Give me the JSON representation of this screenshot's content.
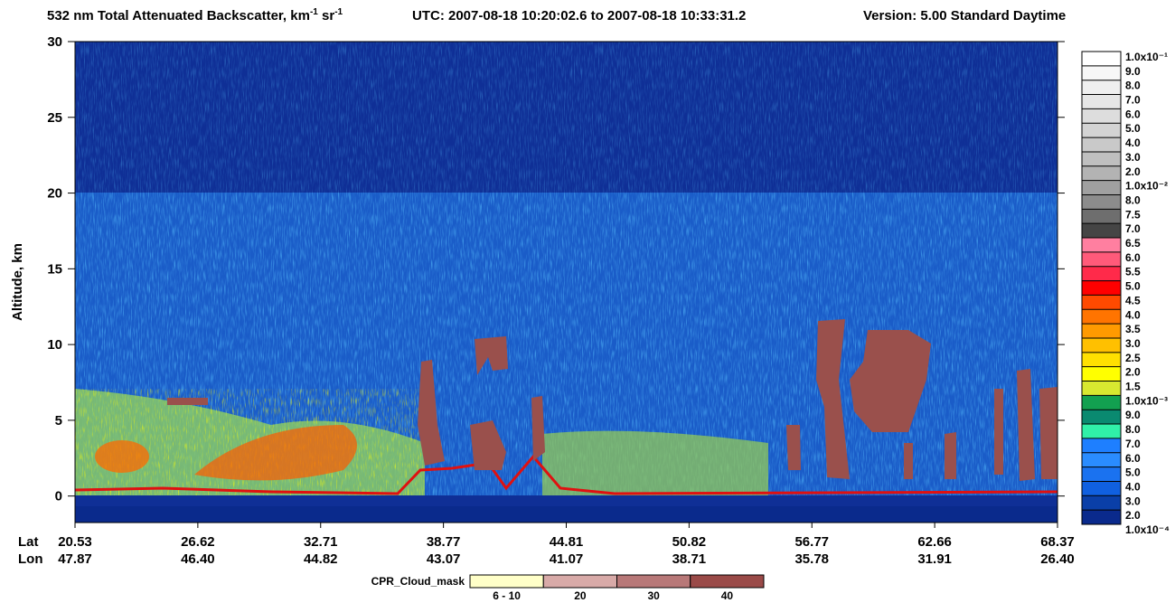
{
  "chart_data": {
    "type": "heatmap",
    "title_parts": [
      "532 nm Total Attenuated Backscatter, km",
      "-1",
      " sr",
      "-1"
    ],
    "utc": "UTC:  2007-08-18 10:20:02.6  to  2007-08-18 10:33:31.2",
    "version": "Version: 5.00  Standard  Daytime",
    "ylabel": "Altitude, km",
    "ylim": [
      -1.75,
      30
    ],
    "yticks": [
      0,
      5,
      10,
      15,
      20,
      25,
      30
    ],
    "x_rows": [
      {
        "name": "Lat",
        "labels": [
          "20.53",
          "26.62",
          "32.71",
          "38.77",
          "44.81",
          "50.82",
          "56.77",
          "62.66",
          "68.37"
        ]
      },
      {
        "name": "Lon",
        "labels": [
          "47.87",
          "46.40",
          "44.82",
          "43.07",
          "41.07",
          "38.71",
          "35.78",
          "31.91",
          "26.40"
        ]
      }
    ],
    "colorbar_labels": [
      "1.0x10⁻¹",
      "9.0",
      "8.0",
      "7.0",
      "6.0",
      "5.0",
      "4.0",
      "3.0",
      "2.0",
      "1.0x10⁻²",
      "8.0",
      "7.5",
      "7.0",
      "6.5",
      "6.0",
      "5.5",
      "5.0",
      "4.5",
      "4.0",
      "3.5",
      "3.0",
      "2.5",
      "2.0",
      "1.5",
      "1.0x10⁻³",
      "9.0",
      "8.0",
      "7.0",
      "6.0",
      "5.0",
      "4.0",
      "3.0",
      "2.0",
      "1.0x10⁻⁴"
    ],
    "colorbar_colors": [
      "#ffffff",
      "#f7f7f7",
      "#efefef",
      "#e6e6e6",
      "#dddddd",
      "#d3d3d3",
      "#c9c9c9",
      "#bfbfbf",
      "#b3b3b3",
      "#a0a0a0",
      "#8c8c8c",
      "#6e6e6e",
      "#454545",
      "#ff7fa0",
      "#ff5a7a",
      "#ff2a4a",
      "#ff0000",
      "#ff4a00",
      "#ff7400",
      "#ff9a00",
      "#ffc000",
      "#ffe000",
      "#ffff00",
      "#d8e830",
      "#12a050",
      "#0a8a70",
      "#30f0a8",
      "#1e7fff",
      "#2a8cff",
      "#1a72f0",
      "#1060e0",
      "#0a3fa8",
      "#0a2a8c"
    ],
    "cloud_mask": {
      "title": "CPR_Cloud_mask",
      "labels": [
        "6 - 10",
        "20",
        "30",
        "40"
      ],
      "colors": [
        "#ffffc8",
        "#d8aaa8",
        "#b87878",
        "#9a4a48"
      ]
    }
  }
}
